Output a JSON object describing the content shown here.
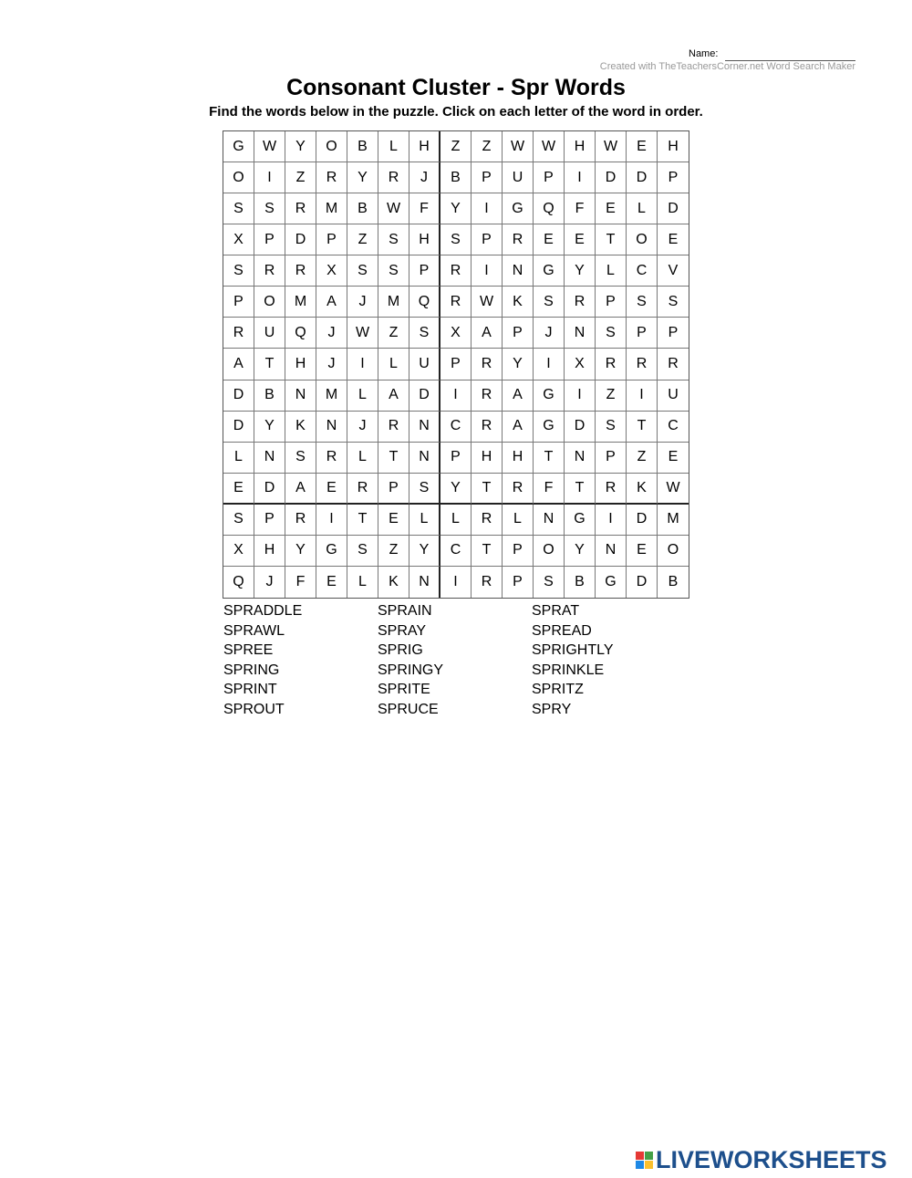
{
  "header": {
    "name_label": "Name:",
    "credit": "Created with TheTeachersCorner.net Word Search Maker",
    "title": "Consonant Cluster - Spr Words",
    "instructions": "Find the words below in the puzzle. Click on each letter of the word in order."
  },
  "grid": [
    "GWYOBLHZZWWHWEH",
    "OIZRYRJBPUPIDDP",
    "SSRMBWFYIGQFELD",
    "XPDPZSHSPREETOE",
    "SRRXSSPRINGYLCV",
    "POMAJMQRWKSRPSS",
    "RUQJWZSXAPJNSPP",
    "ATHJILUPRYIXRRR",
    "DBNMLADIRAGIZIU",
    "DYKNJRNCRAGDSTC",
    "LNSRLTNPHHTNPZE",
    "EDAERPSYTRFTRKW",
    "SPRITELLRLNGIDM",
    "XHYGSZYCTPOYNEO",
    "QJFELKNIRPSBGDB"
  ],
  "words": [
    "SPRADDLE",
    "SPRAIN",
    "SPRAT",
    "SPRAWL",
    "SPRAY",
    "SPREAD",
    "SPREE",
    "SPRIG",
    "SPRIGHTLY",
    "SPRING",
    "SPRINGY",
    "SPRINKLE",
    "SPRINT",
    "SPRITE",
    "SPRITZ",
    "SPROUT",
    "SPRUCE",
    "SPRY"
  ],
  "logo": {
    "text": "LIVEWORKSHEETS",
    "colors": [
      "#e53935",
      "#43a047",
      "#1e88e5",
      "#fbc02d"
    ]
  }
}
